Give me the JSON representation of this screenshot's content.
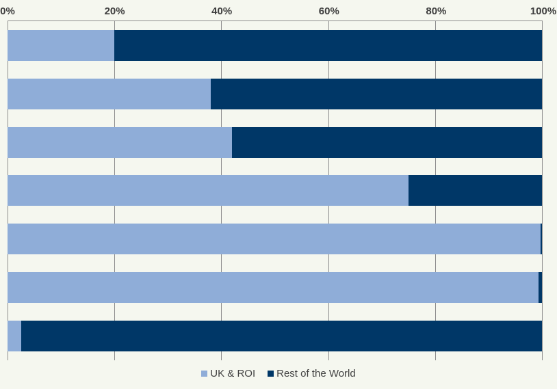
{
  "chart_data": {
    "type": "bar",
    "orientation": "horizontal",
    "stacking": "percent",
    "grid": true,
    "categories": [
      "",
      "",
      "",
      "",
      "",
      "",
      ""
    ],
    "series": [
      {
        "name": "UK & ROI",
        "color": "#8FADD8",
        "values": [
          20,
          38,
          42,
          75,
          99.7,
          99.4,
          2.5
        ]
      },
      {
        "name": "Rest of the World",
        "color": "#003767",
        "values": [
          80,
          62,
          58,
          25,
          0.3,
          0.6,
          97.5
        ]
      }
    ],
    "x_axis": {
      "position": "top",
      "min": 0,
      "max": 100,
      "tick_labels": [
        "0%",
        "20%",
        "40%",
        "60%",
        "80%",
        "100%"
      ]
    },
    "legend": {
      "position": "bottom",
      "items": [
        "UK & ROI",
        "Rest of the World"
      ]
    }
  },
  "colors": {
    "background": "#F5F7EF",
    "gridline": "#8C8C8C",
    "axis_text": "#3D3D3D",
    "legend_text": "#404040"
  }
}
